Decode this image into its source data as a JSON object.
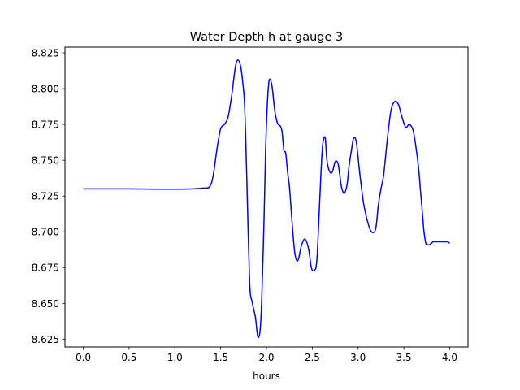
{
  "chart_data": {
    "type": "line",
    "title": "Water Depth h at gauge 3",
    "xlabel": "hours",
    "ylabel": "",
    "xlim": [
      -0.2,
      4.2
    ],
    "ylim": [
      8.6195,
      8.829
    ],
    "x_ticks": [
      "0.0",
      "0.5",
      "1.0",
      "1.5",
      "2.0",
      "2.5",
      "3.0",
      "3.5",
      "4.0"
    ],
    "y_ticks": [
      "8.625",
      "8.650",
      "8.675",
      "8.700",
      "8.725",
      "8.750",
      "8.775",
      "8.800",
      "8.825"
    ],
    "grid": false,
    "series": [
      {
        "color": "#0000ff",
        "x": [
          0.0,
          0.5,
          0.8,
          1.0,
          1.2,
          1.3,
          1.38,
          1.42,
          1.46,
          1.5,
          1.54,
          1.58,
          1.62,
          1.66,
          1.69,
          1.72,
          1.74,
          1.76,
          1.78,
          1.8,
          1.82,
          1.84,
          1.86,
          1.88,
          1.91,
          1.94,
          1.97,
          1.99,
          2.01,
          2.03,
          2.06,
          2.09,
          2.12,
          2.15,
          2.17,
          2.19,
          2.21,
          2.23,
          2.25,
          2.27,
          2.29,
          2.31,
          2.33,
          2.35,
          2.38,
          2.42,
          2.46,
          2.49,
          2.52,
          2.55,
          2.58,
          2.61,
          2.64,
          2.66,
          2.69,
          2.72,
          2.75,
          2.78,
          2.8,
          2.82,
          2.85,
          2.88,
          2.9,
          2.93,
          2.95,
          2.98,
          3.02,
          3.06,
          3.1,
          3.14,
          3.18,
          3.2,
          3.22,
          3.25,
          3.28,
          3.32,
          3.36,
          3.4,
          3.44,
          3.48,
          3.52,
          3.56,
          3.6,
          3.63,
          3.66,
          3.68,
          3.7,
          3.72,
          3.74,
          3.76,
          3.78,
          3.8,
          3.82,
          3.84,
          3.86,
          3.88,
          3.9,
          3.92,
          3.94,
          3.96,
          3.98,
          4.0
        ],
        "y": [
          8.73,
          8.73,
          8.7298,
          8.7298,
          8.73,
          8.7305,
          8.7315,
          8.74,
          8.758,
          8.772,
          8.775,
          8.78,
          8.795,
          8.815,
          8.82,
          8.815,
          8.805,
          8.79,
          8.75,
          8.7,
          8.66,
          8.652,
          8.646,
          8.64,
          8.626,
          8.64,
          8.7,
          8.755,
          8.79,
          8.806,
          8.802,
          8.785,
          8.776,
          8.774,
          8.77,
          8.757,
          8.755,
          8.742,
          8.732,
          8.715,
          8.698,
          8.685,
          8.68,
          8.681,
          8.69,
          8.695,
          8.688,
          8.675,
          8.673,
          8.68,
          8.72,
          8.758,
          8.766,
          8.75,
          8.742,
          8.742,
          8.749,
          8.748,
          8.74,
          8.731,
          8.727,
          8.733,
          8.745,
          8.758,
          8.765,
          8.763,
          8.74,
          8.72,
          8.708,
          8.7005,
          8.7,
          8.705,
          8.718,
          8.73,
          8.74,
          8.765,
          8.785,
          8.791,
          8.789,
          8.78,
          8.773,
          8.775,
          8.771,
          8.76,
          8.745,
          8.73,
          8.715,
          8.7,
          8.692,
          8.691,
          8.691,
          8.692,
          8.693,
          8.693,
          8.693,
          8.693,
          8.693,
          8.693,
          8.693,
          8.693,
          8.693,
          8.692
        ]
      }
    ]
  }
}
